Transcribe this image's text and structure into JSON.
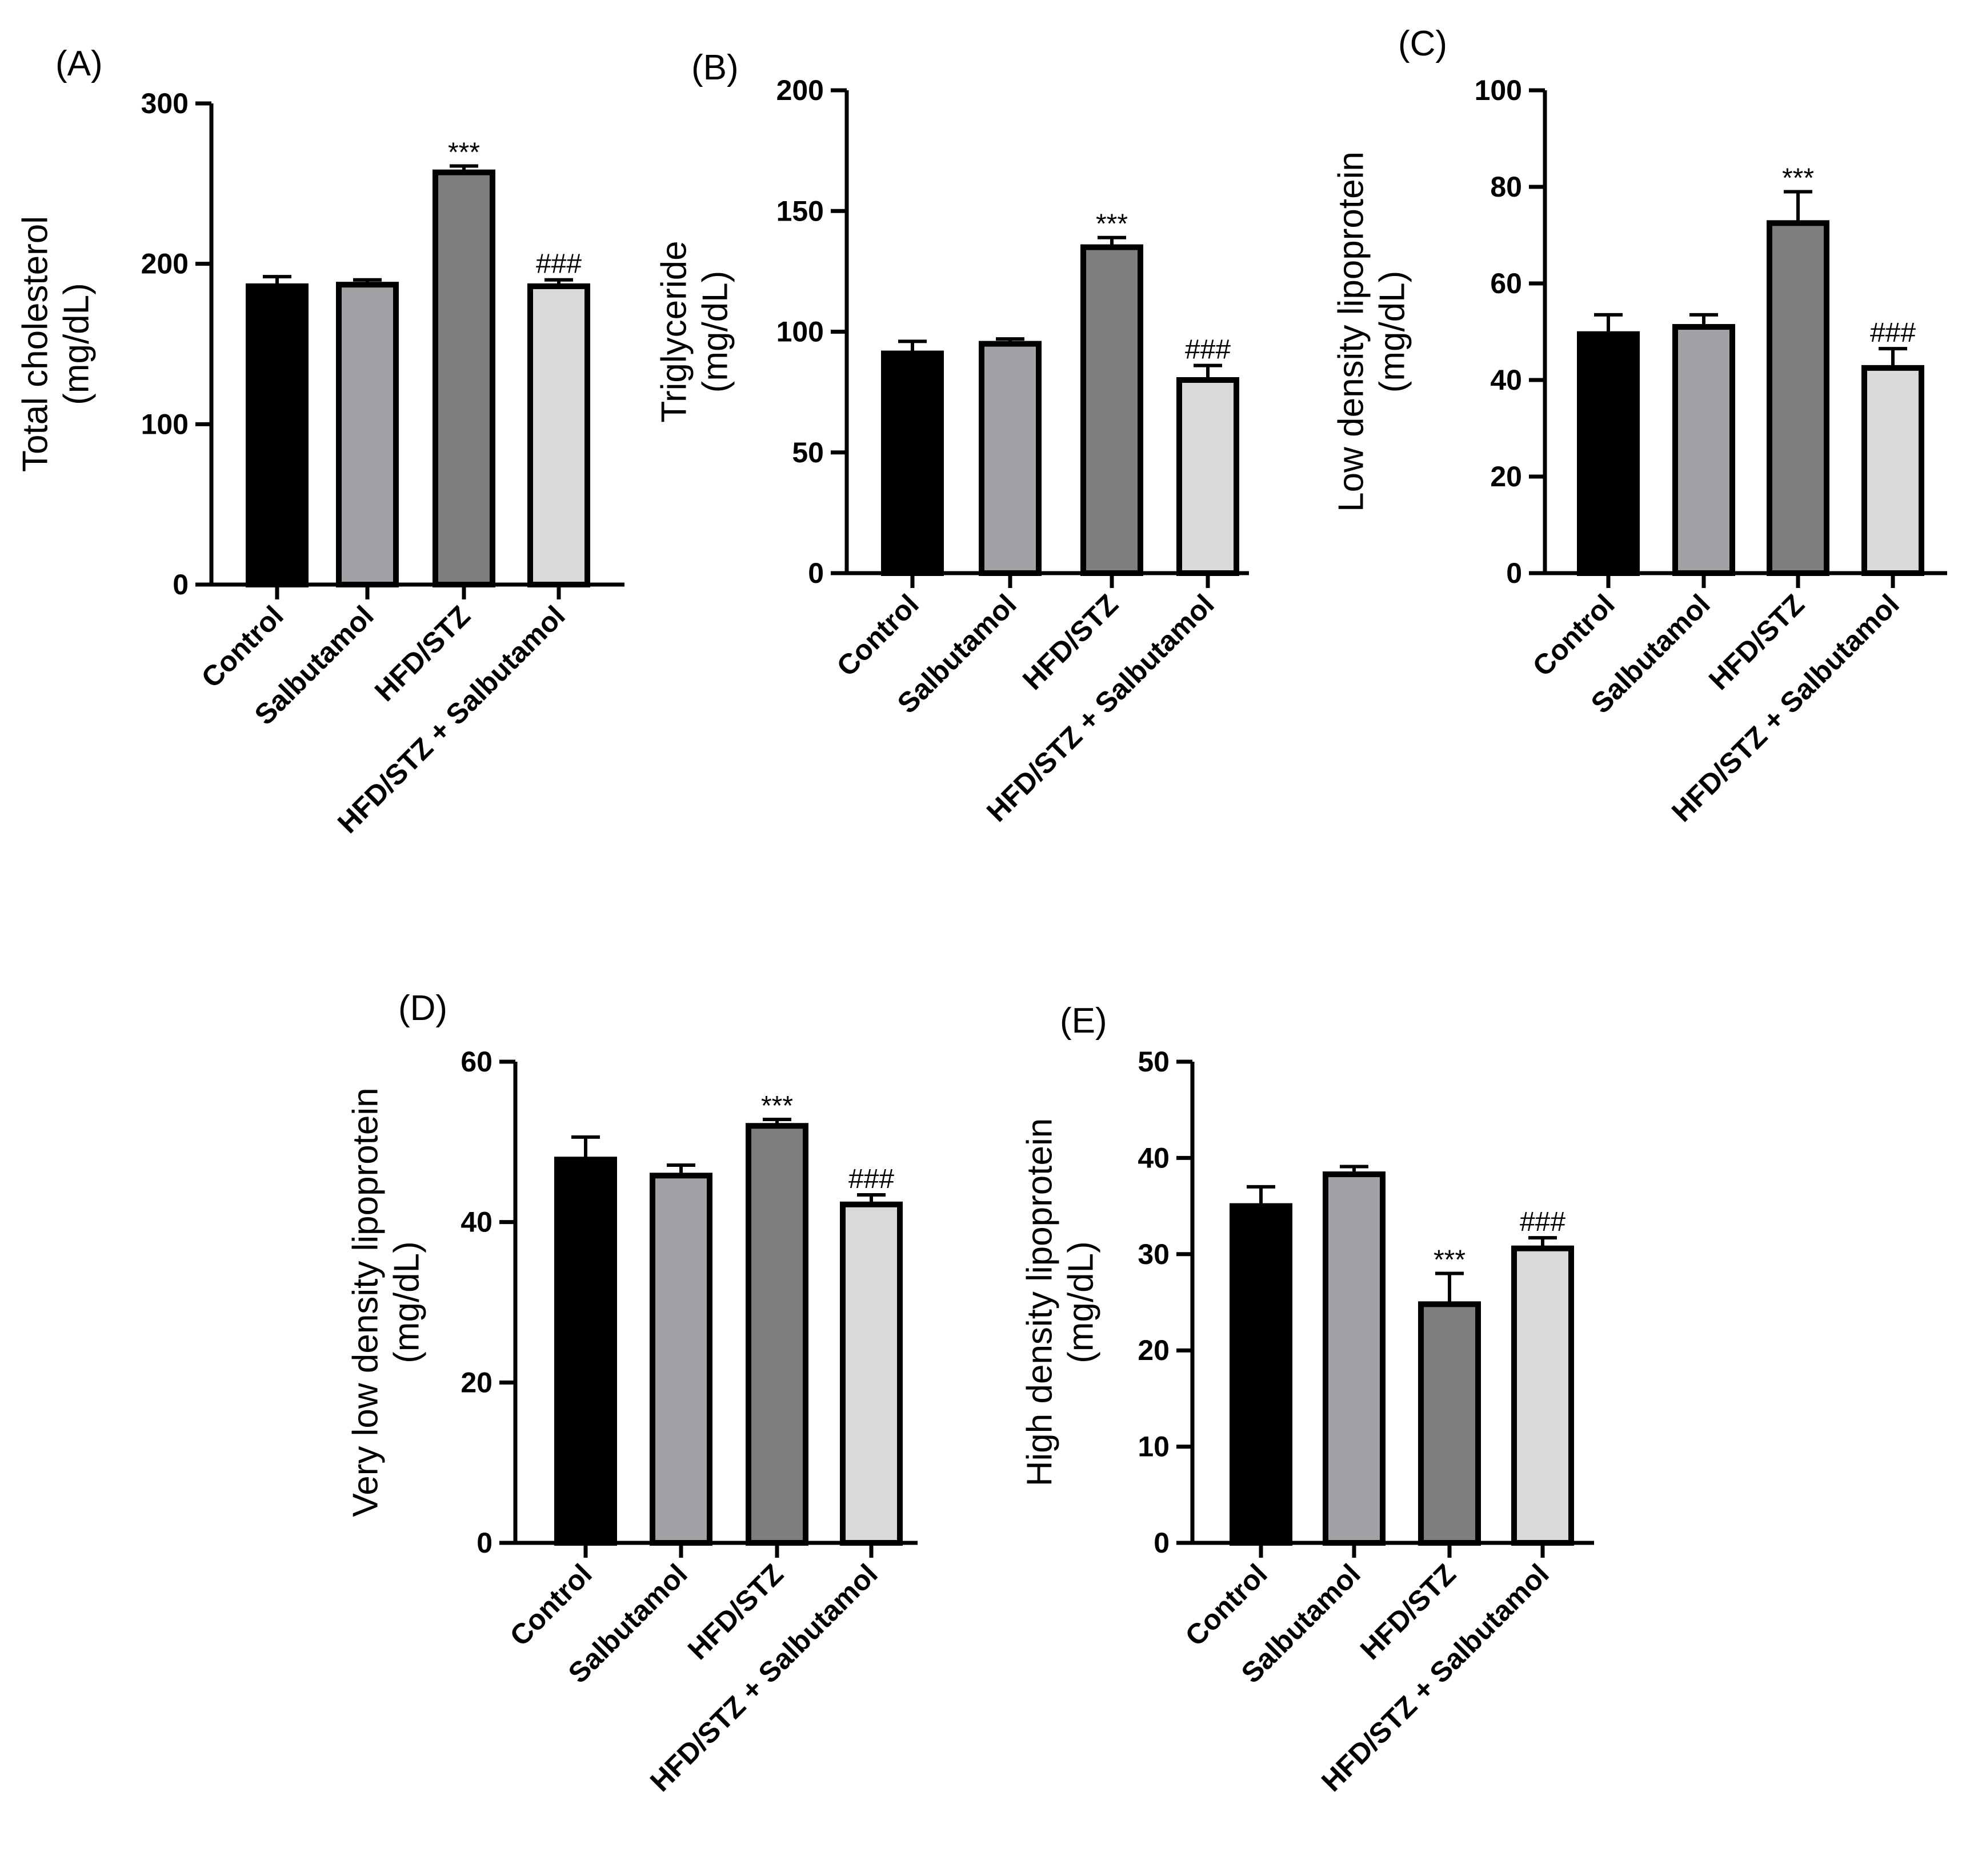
{
  "chart_data": [
    {
      "type": "bar",
      "panel": "(A)",
      "ylabel": [
        "Total cholesterol",
        "(mg/dL)"
      ],
      "ylim": [
        0,
        300
      ],
      "yticks": [
        0,
        100,
        200,
        300
      ],
      "categories": [
        "Control",
        "Salbutamol",
        "HFD/STZ",
        "HFD/STZ + Salbutamol"
      ],
      "values": [
        186,
        187,
        257,
        186
      ],
      "errors": [
        6,
        3,
        4,
        4
      ],
      "significance": [
        "",
        "",
        "***",
        "###"
      ]
    },
    {
      "type": "bar",
      "panel": "(B)",
      "ylabel": [
        "Triglyceride",
        "(mg/dL)"
      ],
      "ylim": [
        0,
        200
      ],
      "yticks": [
        0,
        50,
        100,
        150,
        200
      ],
      "categories": [
        "Control",
        "Salbutamol",
        "HFD/STZ",
        "HFD/STZ + Salbutamol"
      ],
      "values": [
        91,
        95,
        135,
        80
      ],
      "errors": [
        5,
        2,
        4,
        6
      ],
      "significance": [
        "",
        "",
        "***",
        "###"
      ]
    },
    {
      "type": "bar",
      "panel": "(C)",
      "ylabel": [
        "Low density lipoprotein",
        "(mg/dL)"
      ],
      "ylim": [
        0,
        100
      ],
      "yticks": [
        0,
        20,
        40,
        60,
        80,
        100
      ],
      "categories": [
        "Control",
        "Salbutamol",
        "HFD/STZ",
        "HFD/STZ + Salbutamol"
      ],
      "values": [
        49.5,
        51,
        72.5,
        42.5
      ],
      "errors": [
        4,
        2.5,
        6.5,
        4
      ],
      "significance": [
        "",
        "",
        "***",
        "###"
      ]
    },
    {
      "type": "bar",
      "panel": "(D)",
      "ylabel": [
        "Very low density lipoprotein",
        "(mg/dL)"
      ],
      "ylim": [
        0,
        60
      ],
      "yticks": [
        0,
        20,
        40,
        60
      ],
      "categories": [
        "Control",
        "Salbutamol",
        "HFD/STZ",
        "HFD/STZ + Salbutamol"
      ],
      "values": [
        47.8,
        45.8,
        52,
        42.2
      ],
      "errors": [
        2.8,
        1.3,
        0.8,
        1.2
      ],
      "significance": [
        "",
        "",
        "***",
        "###"
      ]
    },
    {
      "type": "bar",
      "panel": "(E)",
      "ylabel": [
        "High density lipoprotein",
        "(mg/dL)"
      ],
      "ylim": [
        0,
        50
      ],
      "yticks": [
        0,
        10,
        20,
        30,
        40,
        50
      ],
      "categories": [
        "Control",
        "Salbutamol",
        "HFD/STZ",
        "HFD/STZ + Salbutamol"
      ],
      "values": [
        35,
        38.3,
        24.8,
        30.6
      ],
      "errors": [
        2,
        0.8,
        3.2,
        1.1
      ],
      "significance": [
        "",
        "",
        "***",
        "###"
      ]
    }
  ],
  "colors": {
    "bars": [
      "#000000",
      "#a2a1a6",
      "#7e7e7e",
      "#d9d9d9"
    ],
    "axis": "#000000"
  }
}
